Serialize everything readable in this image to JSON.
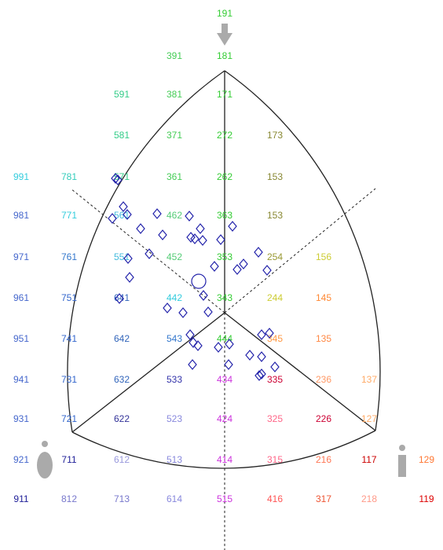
{
  "grid": {
    "rows": [
      [
        {
          "text": "191",
          "color": "#33cc33"
        }
      ],
      [
        {
          "text": "391",
          "color": "#44cc55"
        },
        {
          "text": "181",
          "color": "#33cc33"
        }
      ],
      [
        {
          "text": "591",
          "color": "#33cc88"
        },
        {
          "text": "381",
          "color": "#44cc55"
        },
        {
          "text": "171",
          "color": "#33cc33"
        }
      ],
      [
        {
          "text": "581",
          "color": "#33cc88"
        },
        {
          "text": "371",
          "color": "#44cc55"
        },
        {
          "text": "272",
          "color": "#33cc33"
        },
        {
          "text": "173",
          "color": "#888833"
        }
      ],
      [
        {
          "text": "991",
          "color": "#33ccdd"
        },
        {
          "text": "781",
          "color": "#33ccbb"
        },
        {
          "text": "571",
          "color": "#33cc88"
        },
        {
          "text": "361",
          "color": "#44cc55"
        },
        {
          "text": "262",
          "color": "#33cc33"
        },
        {
          "text": "153",
          "color": "#888833"
        }
      ],
      [
        {
          "text": "981",
          "color": "#4466cc"
        },
        {
          "text": "771",
          "color": "#33ccdd"
        },
        {
          "text": "561",
          "color": "#44bbdd"
        },
        {
          "text": "462",
          "color": "#55cc77"
        },
        {
          "text": "363",
          "color": "#33cc33"
        },
        {
          "text": "153",
          "color": "#888833"
        }
      ],
      [
        {
          "text": "971",
          "color": "#4466cc"
        },
        {
          "text": "761",
          "color": "#3377cc"
        },
        {
          "text": "551",
          "color": "#44bbdd"
        },
        {
          "text": "452",
          "color": "#55cc77"
        },
        {
          "text": "353",
          "color": "#33cc33"
        },
        {
          "text": "254",
          "color": "#999933"
        },
        {
          "text": "156",
          "color": "#cccc33"
        }
      ],
      [
        {
          "text": "961",
          "color": "#4466cc"
        },
        {
          "text": "751",
          "color": "#3366cc"
        },
        {
          "text": "641",
          "color": "#3366bb"
        },
        {
          "text": "442",
          "color": "#33ccdd"
        },
        {
          "text": "343",
          "color": "#33cc33"
        },
        {
          "text": "244",
          "color": "#cccc33"
        },
        {
          "text": "145",
          "color": "#ff8833"
        }
      ],
      [
        {
          "text": "951",
          "color": "#4466cc"
        },
        {
          "text": "741",
          "color": "#3366cc"
        },
        {
          "text": "642",
          "color": "#3366bb"
        },
        {
          "text": "543",
          "color": "#3377cc"
        },
        {
          "text": "444",
          "color": "#33cc33"
        },
        {
          "text": "345",
          "color": "#ff9944"
        },
        {
          "text": "135",
          "color": "#ff8844"
        }
      ],
      [
        {
          "text": "941",
          "color": "#4466cc"
        },
        {
          "text": "731",
          "color": "#3366cc"
        },
        {
          "text": "632",
          "color": "#3366bb"
        },
        {
          "text": "533",
          "color": "#3333aa"
        },
        {
          "text": "434",
          "color": "#cc33dd"
        },
        {
          "text": "335",
          "color": "#cc0033"
        },
        {
          "text": "236",
          "color": "#ff9966"
        },
        {
          "text": "137",
          "color": "#ffaa66"
        }
      ],
      [
        {
          "text": "931",
          "color": "#4466cc"
        },
        {
          "text": "721",
          "color": "#3366cc"
        },
        {
          "text": "622",
          "color": "#333399"
        },
        {
          "text": "523",
          "color": "#8888dd"
        },
        {
          "text": "424",
          "color": "#cc33dd"
        },
        {
          "text": "325",
          "color": "#ff6688"
        },
        {
          "text": "226",
          "color": "#cc0033"
        },
        {
          "text": "127",
          "color": "#ffaa66"
        }
      ],
      [
        {
          "text": "921",
          "color": "#4466cc"
        },
        {
          "text": "711",
          "color": "#222299"
        },
        {
          "text": "612",
          "color": "#9999dd"
        },
        {
          "text": "513",
          "color": "#8888dd"
        },
        {
          "text": "414",
          "color": "#cc33dd"
        },
        {
          "text": "315",
          "color": "#ff6688"
        },
        {
          "text": "216",
          "color": "#ff7755"
        },
        {
          "text": "117",
          "color": "#cc0000"
        },
        {
          "text": "129",
          "color": "#ff7733"
        }
      ],
      [
        {
          "text": "911",
          "color": "#222299"
        },
        {
          "text": "812",
          "color": "#7777cc"
        },
        {
          "text": "713",
          "color": "#7777cc"
        },
        {
          "text": "614",
          "color": "#8888dd"
        },
        {
          "text": "515",
          "color": "#cc33dd"
        },
        {
          "text": "416",
          "color": "#ff5555"
        },
        {
          "text": "317",
          "color": "#ee5533"
        },
        {
          "text": "218",
          "color": "#ff9988"
        },
        {
          "text": "119",
          "color": "#dd0000"
        }
      ]
    ]
  }
}
